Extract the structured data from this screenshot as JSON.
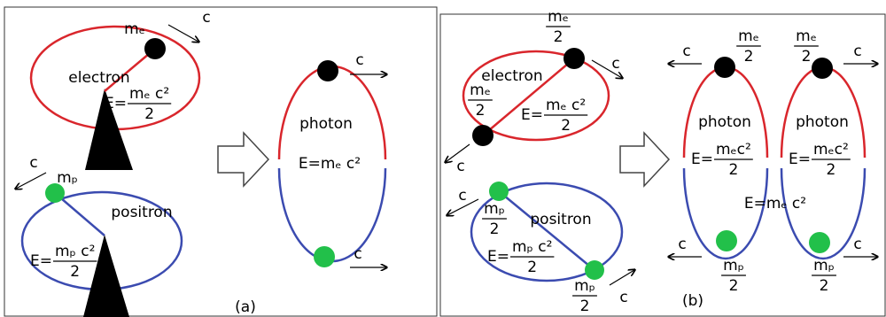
{
  "panel_a": {
    "label": "(a)",
    "electron": {
      "name": "electron",
      "mass": "mₑ",
      "speed": "c",
      "energy": {
        "lhs": "E=",
        "numerator": "mₑ c²",
        "denominator": "2"
      }
    },
    "positron": {
      "name": "positron",
      "mass": "mₚ",
      "speed": "c",
      "energy": {
        "lhs": "E=",
        "numerator": "mₚ c²",
        "denominator": "2"
      }
    },
    "photon": {
      "name": "photon",
      "energy": "E=mₑ c²",
      "speed_top": "c",
      "speed_bottom": "c"
    }
  },
  "panel_b": {
    "label": "(b)",
    "electron": {
      "name": "electron",
      "mass_top": {
        "numerator": "mₑ",
        "denominator": "2"
      },
      "mass_bottom": {
        "numerator": "mₑ",
        "denominator": "2"
      },
      "speed_top": "c",
      "speed_bottom": "c",
      "energy": {
        "lhs": "E=",
        "numerator": "mₑ c²",
        "denominator": "2"
      }
    },
    "positron": {
      "name": "positron",
      "mass_top": {
        "numerator": "mₚ",
        "denominator": "2"
      },
      "mass_bottom": {
        "numerator": "mₚ",
        "denominator": "2"
      },
      "speed_top": "c",
      "speed_bottom": "c",
      "energy": {
        "lhs": "E=",
        "numerator": "mₚ c²",
        "denominator": "2"
      }
    },
    "photons": [
      {
        "name": "photon",
        "mass_top": {
          "numerator": "mₑ",
          "denominator": "2"
        },
        "mass_bottom": {
          "numerator": "mₚ",
          "denominator": "2"
        },
        "speed_top": "c",
        "speed_bottom": "c",
        "energy": {
          "lhs": "E=",
          "numerator": "mₑc²",
          "denominator": "2"
        }
      },
      {
        "name": "photon",
        "mass_top": {
          "numerator": "mₑ",
          "denominator": "2"
        },
        "mass_bottom": {
          "numerator": "mₚ",
          "denominator": "2"
        },
        "speed_top": "c",
        "speed_bottom": "c",
        "energy": {
          "lhs": "E=",
          "numerator": "mₑc²",
          "denominator": "2"
        }
      }
    ],
    "total_energy": "E=mₑ c²"
  }
}
